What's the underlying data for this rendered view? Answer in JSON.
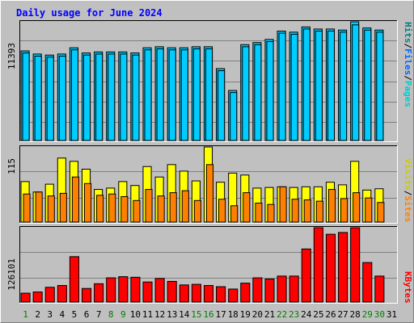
{
  "title": "Daily usage for June 2024",
  "colors": {
    "background": "#c0c0c0",
    "title": "#0000ff",
    "hits": "#00ccff",
    "files": "#0066ff",
    "pages": "#00ffff",
    "visits": "#ffff00",
    "sites": "#ff8000",
    "kbytes": "#ff0000",
    "weekday_label": "#000000",
    "weekend_label": "#008000"
  },
  "chart_data": [
    {
      "type": "bar",
      "name": "hits-files-pages",
      "x": [
        1,
        2,
        3,
        4,
        5,
        6,
        7,
        8,
        9,
        10,
        11,
        12,
        13,
        14,
        15,
        16,
        17,
        18,
        19,
        20,
        21,
        22,
        23,
        24,
        25,
        26,
        27,
        28,
        29,
        30,
        31
      ],
      "max_label": "11393",
      "right_label_parts": [
        "Pages",
        "/",
        "Files",
        "/",
        "Hits"
      ],
      "series": [
        {
          "name": "Hits",
          "values": [
            8600,
            8300,
            8200,
            8300,
            8900,
            8400,
            8500,
            8500,
            8500,
            8400,
            8900,
            9000,
            8900,
            8900,
            9000,
            9000,
            6900,
            4800,
            9200,
            9400,
            9700,
            10500,
            10400,
            10900,
            10700,
            10700,
            10600,
            11393,
            10800,
            10600,
            null
          ]
        },
        {
          "name": "Files",
          "values": [
            8400,
            8100,
            8000,
            8100,
            8700,
            8200,
            8300,
            8300,
            8300,
            8200,
            8700,
            8800,
            8700,
            8700,
            8800,
            8800,
            6700,
            4600,
            9000,
            9200,
            9500,
            10300,
            10200,
            10700,
            10500,
            10500,
            10400,
            11100,
            10600,
            10400,
            null
          ]
        }
      ]
    },
    {
      "type": "bar",
      "name": "visits-sites",
      "x": [
        1,
        2,
        3,
        4,
        5,
        6,
        7,
        8,
        9,
        10,
        11,
        12,
        13,
        14,
        15,
        16,
        17,
        18,
        19,
        20,
        21,
        22,
        23,
        24,
        25,
        26,
        27,
        28,
        29,
        30,
        31
      ],
      "max_label": "115",
      "right_label_parts": [
        "Sites",
        "/",
        "Visits"
      ],
      "series": [
        {
          "name": "Visits",
          "values": [
            62,
            46,
            58,
            98,
            93,
            81,
            50,
            52,
            62,
            56,
            85,
            69,
            88,
            78,
            63,
            115,
            61,
            75,
            72,
            52,
            53,
            54,
            53,
            54,
            54,
            61,
            57,
            93,
            49,
            51,
            null
          ]
        },
        {
          "name": "Sites",
          "values": [
            43,
            46,
            40,
            44,
            69,
            59,
            41,
            43,
            39,
            33,
            50,
            40,
            45,
            48,
            33,
            88,
            35,
            25,
            45,
            29,
            27,
            54,
            35,
            34,
            32,
            50,
            36,
            45,
            37,
            30,
            null
          ]
        }
      ]
    },
    {
      "type": "bar",
      "name": "kbytes",
      "x": [
        1,
        2,
        3,
        4,
        5,
        6,
        7,
        8,
        9,
        10,
        11,
        12,
        13,
        14,
        15,
        16,
        17,
        18,
        19,
        20,
        21,
        22,
        23,
        24,
        25,
        26,
        27,
        28,
        29,
        30,
        31
      ],
      "max_label": "126101",
      "right_label": "KBytes",
      "series": [
        {
          "name": "KBytes",
          "values": [
            15000,
            17000,
            25000,
            28000,
            77000,
            23000,
            31000,
            41000,
            43000,
            42000,
            34000,
            40000,
            35000,
            29000,
            30000,
            28000,
            26000,
            22000,
            32000,
            41000,
            39000,
            44000,
            44000,
            90000,
            126101,
            115000,
            118000,
            126101,
            67000,
            44000,
            null
          ]
        }
      ]
    }
  ],
  "weekend_days": [
    1,
    8,
    9,
    15,
    16,
    22,
    23,
    29,
    30
  ]
}
